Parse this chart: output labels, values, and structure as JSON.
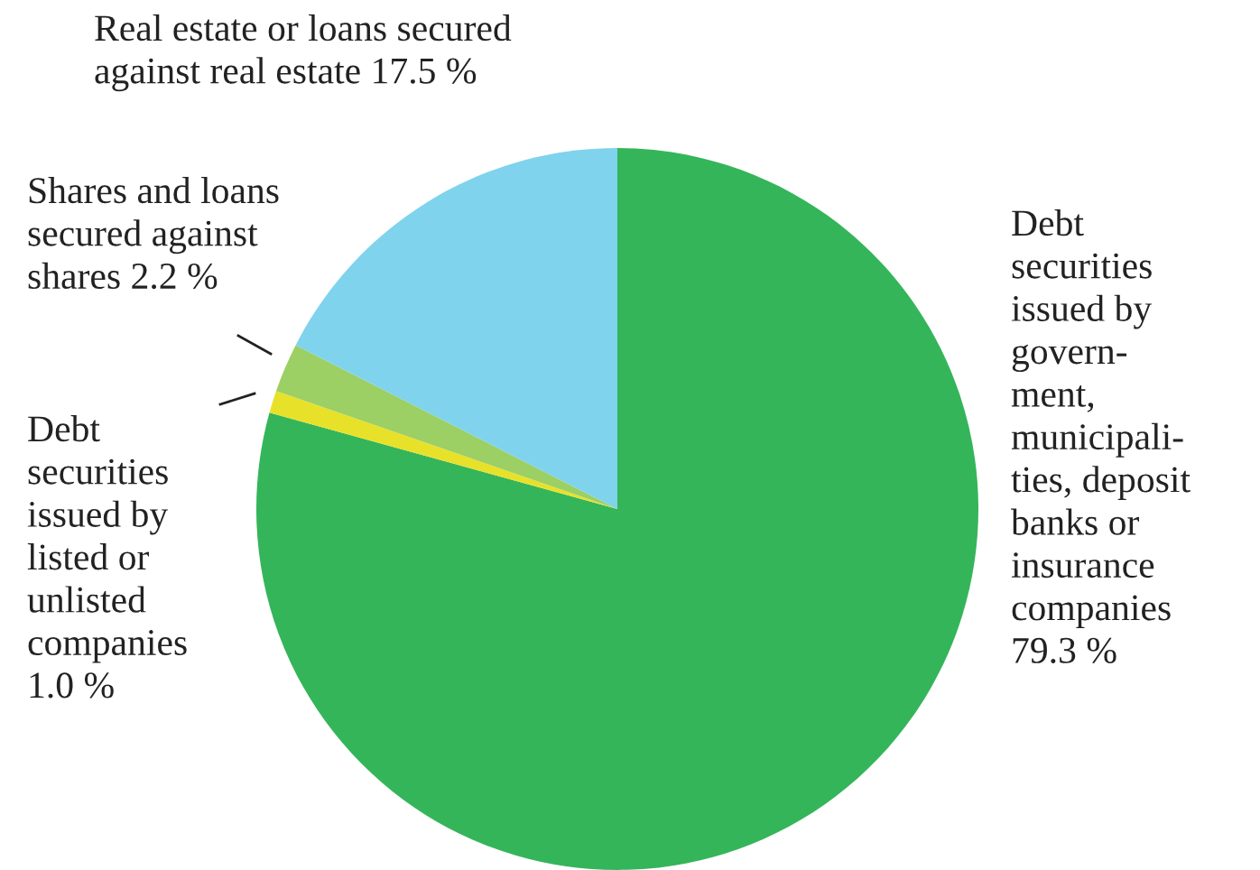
{
  "chart_data": {
    "type": "pie",
    "categories": [
      "Debt\nsecurities\nissued by\ngovern-\nment,\nmunicipali-\nties, deposit\nbanks or\ninsurance\ncompanies\n79.3 %",
      "Debt\nsecurities\nissued by\nlisted or\nunlisted\ncompanies\n1.0 %",
      "Shares and loans\nsecured against\nshares 2.2 %",
      "Real estate or loans secured\nagainst real estate 17.5 %"
    ],
    "values": [
      79.3,
      1.0,
      2.2,
      17.5
    ],
    "colors": [
      "#34b55a",
      "#e8e12a",
      "#9ccf64",
      "#7fd3ec"
    ]
  }
}
